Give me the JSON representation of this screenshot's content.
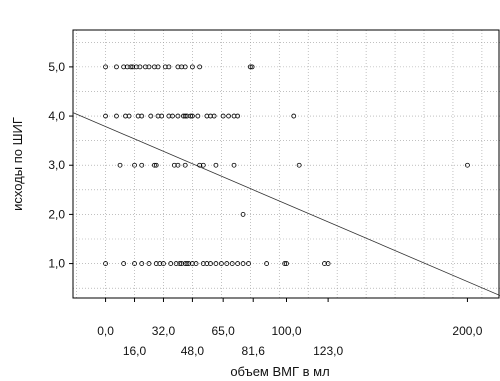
{
  "chart_data": {
    "type": "scatter",
    "title": "",
    "xlabel": "объем ВМГ в мл",
    "ylabel": "исходы по ШИГ",
    "xlim": [
      -18,
      218
    ],
    "ylim": [
      0.3,
      5.75
    ],
    "grid": true,
    "x_ticks": [
      0,
      16,
      32,
      48,
      65,
      81.6,
      100,
      123,
      200
    ],
    "x_tick_labels": [
      "0,0",
      "16,0",
      "32,0",
      "48,0",
      "65,0",
      "81,6",
      "100,0",
      "123,0",
      "200,0"
    ],
    "y_ticks": [
      1,
      2,
      3,
      4,
      5
    ],
    "y_tick_labels": [
      "1,0",
      "2,0",
      "3,0",
      "4,0",
      "5,0"
    ],
    "regression_line": {
      "x": [
        -18,
        218
      ],
      "y": [
        4.07,
        0.35
      ]
    },
    "points": [
      [
        0,
        5
      ],
      [
        6,
        5
      ],
      [
        10,
        5
      ],
      [
        12,
        5
      ],
      [
        14,
        5
      ],
      [
        15,
        5
      ],
      [
        17,
        5
      ],
      [
        19,
        5
      ],
      [
        22,
        5
      ],
      [
        24,
        5
      ],
      [
        27,
        5
      ],
      [
        29,
        5
      ],
      [
        33,
        5
      ],
      [
        35,
        5
      ],
      [
        40,
        5
      ],
      [
        42,
        5
      ],
      [
        44,
        5
      ],
      [
        48,
        5
      ],
      [
        52,
        5
      ],
      [
        80,
        5
      ],
      [
        81,
        5
      ],
      [
        0,
        4
      ],
      [
        6,
        4
      ],
      [
        11,
        4
      ],
      [
        13,
        4
      ],
      [
        18,
        4
      ],
      [
        20,
        4
      ],
      [
        25,
        4
      ],
      [
        29,
        4
      ],
      [
        31,
        4
      ],
      [
        35,
        4
      ],
      [
        37,
        4
      ],
      [
        40,
        4
      ],
      [
        43,
        4
      ],
      [
        44,
        4
      ],
      [
        45,
        4
      ],
      [
        47,
        4
      ],
      [
        48,
        4
      ],
      [
        51,
        4
      ],
      [
        56,
        4
      ],
      [
        58,
        4
      ],
      [
        60,
        4
      ],
      [
        65,
        4
      ],
      [
        68,
        4
      ],
      [
        71,
        4
      ],
      [
        73,
        4
      ],
      [
        104,
        4
      ],
      [
        8,
        3
      ],
      [
        16,
        3
      ],
      [
        20,
        3
      ],
      [
        27,
        3
      ],
      [
        28,
        3
      ],
      [
        38,
        3
      ],
      [
        40,
        3
      ],
      [
        44,
        3
      ],
      [
        52,
        3
      ],
      [
        54,
        3
      ],
      [
        61,
        3
      ],
      [
        71,
        3
      ],
      [
        107,
        3
      ],
      [
        200,
        3
      ],
      [
        76,
        2
      ],
      [
        0,
        1
      ],
      [
        10,
        1
      ],
      [
        16,
        1
      ],
      [
        20,
        1
      ],
      [
        24,
        1
      ],
      [
        28,
        1
      ],
      [
        30,
        1
      ],
      [
        32,
        1
      ],
      [
        36,
        1
      ],
      [
        39,
        1
      ],
      [
        41,
        1
      ],
      [
        42,
        1
      ],
      [
        44,
        1
      ],
      [
        45,
        1
      ],
      [
        46,
        1
      ],
      [
        48,
        1
      ],
      [
        50,
        1
      ],
      [
        54,
        1
      ],
      [
        56,
        1
      ],
      [
        58,
        1
      ],
      [
        61,
        1
      ],
      [
        64,
        1
      ],
      [
        67,
        1
      ],
      [
        70,
        1
      ],
      [
        73,
        1
      ],
      [
        76,
        1
      ],
      [
        79,
        1
      ],
      [
        89,
        1
      ],
      [
        99,
        1
      ],
      [
        100,
        1
      ],
      [
        121,
        1
      ],
      [
        123,
        1
      ]
    ]
  }
}
